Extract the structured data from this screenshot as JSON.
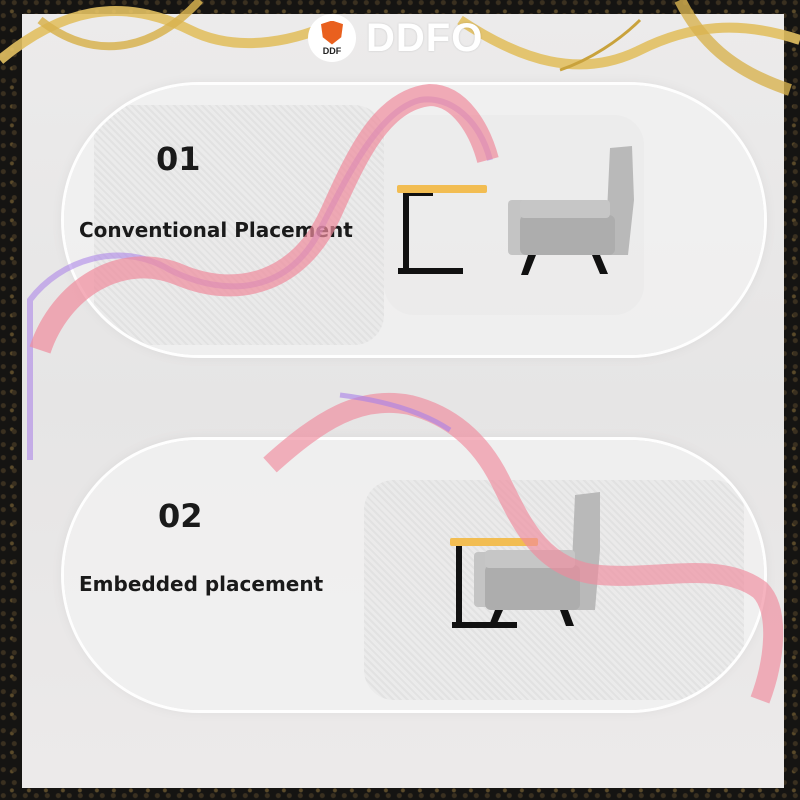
{
  "brand": {
    "badge_text": "DDF",
    "name": "DDFO"
  },
  "placements": [
    {
      "number": "01",
      "label": "Conventional Placement"
    },
    {
      "number": "02",
      "label": "Embedded placement"
    }
  ],
  "colors": {
    "table_top": "#f2bd52",
    "furniture_dark": "#111111",
    "chair_gray": "#b9b9b9",
    "ribbon_pink": "#f08b9c",
    "ribbon_purple": "#a87ee8",
    "gold": "#e2c062",
    "logo_orange": "#e9601e"
  }
}
